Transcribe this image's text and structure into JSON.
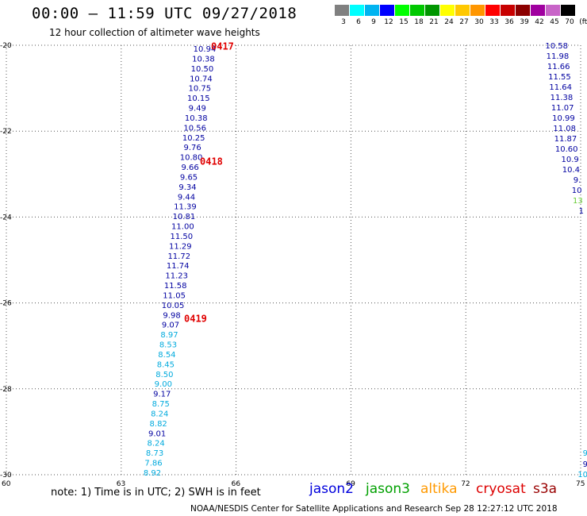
{
  "title": "00:00 – 11:59 UTC 09/27/2018",
  "subtitle": "12 hour collection of altimeter wave heights",
  "legend": {
    "colors": [
      "#808080",
      "#00ffff",
      "#00b4f0",
      "#0000ff",
      "#00ff00",
      "#00c800",
      "#009600",
      "#ffff00",
      "#ffc800",
      "#ff9600",
      "#ff0000",
      "#c80000",
      "#8c0000",
      "#a000a0",
      "#c864c8",
      "#000000"
    ],
    "labels": [
      "3",
      "6",
      "9",
      "12",
      "15",
      "18",
      "21",
      "24",
      "27",
      "30",
      "33",
      "36",
      "39",
      "42",
      "45",
      "70",
      "(ft)"
    ]
  },
  "axes": {
    "x_ticks": [
      "60",
      "63",
      "66",
      "69",
      "72",
      "75"
    ],
    "y_ticks": [
      "-20",
      "-22",
      "-24",
      "-26",
      "-28",
      "-30"
    ]
  },
  "left_track": [
    {
      "v": "10.94",
      "c": "#0000a0"
    },
    {
      "v": "10.38",
      "c": "#0000a0"
    },
    {
      "v": "10.50",
      "c": "#0000a0"
    },
    {
      "v": "10.74",
      "c": "#0000a0"
    },
    {
      "v": "10.75",
      "c": "#0000a0"
    },
    {
      "v": "10.15",
      "c": "#0000a0"
    },
    {
      "v": "9.49",
      "c": "#0000a0"
    },
    {
      "v": "10.38",
      "c": "#0000a0"
    },
    {
      "v": "10.56",
      "c": "#0000a0"
    },
    {
      "v": "10.25",
      "c": "#0000a0"
    },
    {
      "v": "9.76",
      "c": "#0000a0"
    },
    {
      "v": "10.80",
      "c": "#0000a0"
    },
    {
      "v": "9.66",
      "c": "#0000a0"
    },
    {
      "v": "9.65",
      "c": "#0000a0"
    },
    {
      "v": "9.34",
      "c": "#0000a0"
    },
    {
      "v": "9.44",
      "c": "#0000a0"
    },
    {
      "v": "11.39",
      "c": "#0000a0"
    },
    {
      "v": "10.81",
      "c": "#0000a0"
    },
    {
      "v": "11.00",
      "c": "#0000a0"
    },
    {
      "v": "11.50",
      "c": "#0000a0"
    },
    {
      "v": "11.29",
      "c": "#0000a0"
    },
    {
      "v": "11.72",
      "c": "#0000a0"
    },
    {
      "v": "11.74",
      "c": "#0000a0"
    },
    {
      "v": "11.23",
      "c": "#0000a0"
    },
    {
      "v": "11.58",
      "c": "#0000a0"
    },
    {
      "v": "11.05",
      "c": "#0000a0"
    },
    {
      "v": "10.05",
      "c": "#0000a0"
    },
    {
      "v": "9.98",
      "c": "#0000a0"
    },
    {
      "v": "9.07",
      "c": "#0000a0"
    },
    {
      "v": "8.97",
      "c": "#00aadd"
    },
    {
      "v": "8.53",
      "c": "#00aadd"
    },
    {
      "v": "8.54",
      "c": "#00aadd"
    },
    {
      "v": "8.45",
      "c": "#00aadd"
    },
    {
      "v": "8.50",
      "c": "#00aadd"
    },
    {
      "v": "9.00",
      "c": "#00aadd"
    },
    {
      "v": "9.17",
      "c": "#0000a0"
    },
    {
      "v": "8.75",
      "c": "#00aadd"
    },
    {
      "v": "8.24",
      "c": "#00aadd"
    },
    {
      "v": "8.82",
      "c": "#00aadd"
    },
    {
      "v": "9.01",
      "c": "#0000a0"
    },
    {
      "v": "8.24",
      "c": "#00aadd"
    },
    {
      "v": "8.73",
      "c": "#00aadd"
    },
    {
      "v": "7.86",
      "c": "#00aadd"
    },
    {
      "v": "8.92",
      "c": "#00aadd"
    }
  ],
  "right_track": [
    {
      "v": "10.58",
      "c": "#0000a0"
    },
    {
      "v": "11.98",
      "c": "#0000a0"
    },
    {
      "v": "11.66",
      "c": "#0000a0"
    },
    {
      "v": "11.55",
      "c": "#0000a0"
    },
    {
      "v": "11.64",
      "c": "#0000a0"
    },
    {
      "v": "11.38",
      "c": "#0000a0"
    },
    {
      "v": "11.07",
      "c": "#0000a0"
    },
    {
      "v": "10.99",
      "c": "#0000a0"
    },
    {
      "v": "11.08",
      "c": "#0000a0"
    },
    {
      "v": "11.87",
      "c": "#0000a0"
    },
    {
      "v": "10.60",
      "c": "#0000a0"
    },
    {
      "v": "10.9",
      "c": "#0000a0"
    },
    {
      "v": "10.4",
      "c": "#0000a0"
    },
    {
      "v": "9.",
      "c": "#0000a0"
    },
    {
      "v": "10",
      "c": "#0000a0"
    },
    {
      "v": "13",
      "c": "#66cc33"
    },
    {
      "v": "1",
      "c": "#0000a0"
    }
  ],
  "bottom_right_fragments": [
    {
      "v": "9",
      "c": "#00aadd"
    },
    {
      "v": "9",
      "c": "#0000a0"
    },
    {
      "v": "10",
      "c": "#00aadd"
    }
  ],
  "time_labels": [
    "0417",
    "0418",
    "0419"
  ],
  "note": "note:  1) Time is in UTC;  2) SWH is in feet",
  "satellites": [
    {
      "name": "jason2",
      "color": "#0000dd"
    },
    {
      "name": "jason3",
      "color": "#00a000"
    },
    {
      "name": "altika",
      "color": "#ff9900"
    },
    {
      "name": "cryosat",
      "color": "#dd0000"
    },
    {
      "name": "s3a",
      "color": "#990000"
    }
  ],
  "credit": "NOAA/NESDIS Center for Satellite Applications and Research    Sep 28 12:27:12 UTC 2018"
}
